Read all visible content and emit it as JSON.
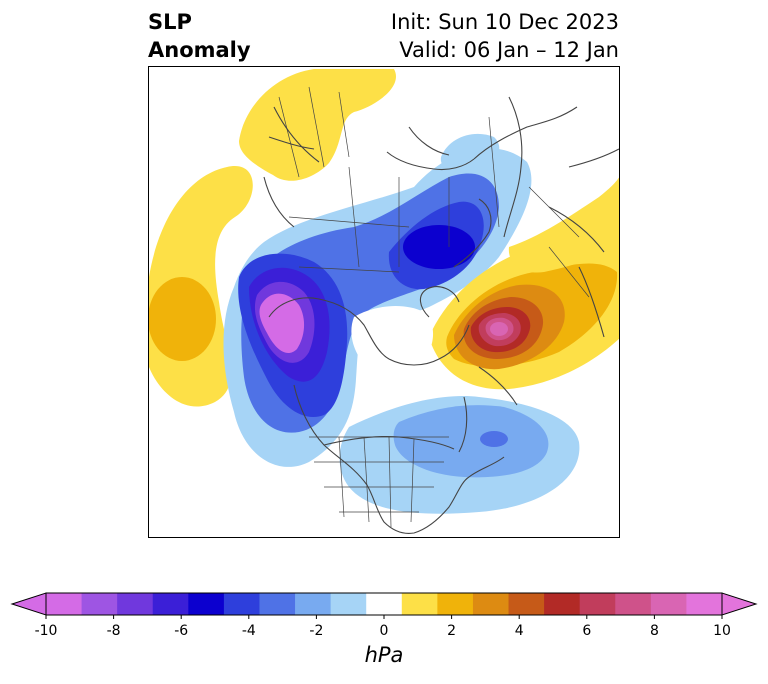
{
  "title": {
    "left_line1": "SLP",
    "left_line2": "Anomaly",
    "right_line1": "Init: Sun 10 Dec 2023",
    "right_line2": "Valid: 06 Jan – 12 Jan"
  },
  "colorbar": {
    "unit": "hPa",
    "ticks": [
      "-10",
      "-8",
      "-6",
      "-4",
      "-2",
      "0",
      "2",
      "4",
      "6",
      "8",
      "10"
    ],
    "colors": [
      "#d46be6",
      "#9e55e3",
      "#7038dd",
      "#3b1fd7",
      "#0c00cf",
      "#2e3fdc",
      "#4f72e6",
      "#78aaf0",
      "#a6d4f6",
      "#ffffff",
      "#fde047",
      "#f0b30a",
      "#dd8b12",
      "#c65a18",
      "#b22a26",
      "#c13d5c",
      "#cf528a",
      "#d965b3",
      "#e374dc"
    ],
    "under_color": "#d46be6",
    "over_color": "#e374dc"
  },
  "map": {
    "projection": "north-polar-stereographic",
    "features": [
      "coastlines",
      "country-borders",
      "state-borders"
    ],
    "notable_anomalies": [
      {
        "sign": "negative",
        "min_hPa": -10
      },
      {
        "sign": "negative",
        "min_hPa": -6
      },
      {
        "sign": "positive",
        "max_hPa": 10
      },
      {
        "sign": "positive",
        "max_hPa": 3
      }
    ]
  }
}
